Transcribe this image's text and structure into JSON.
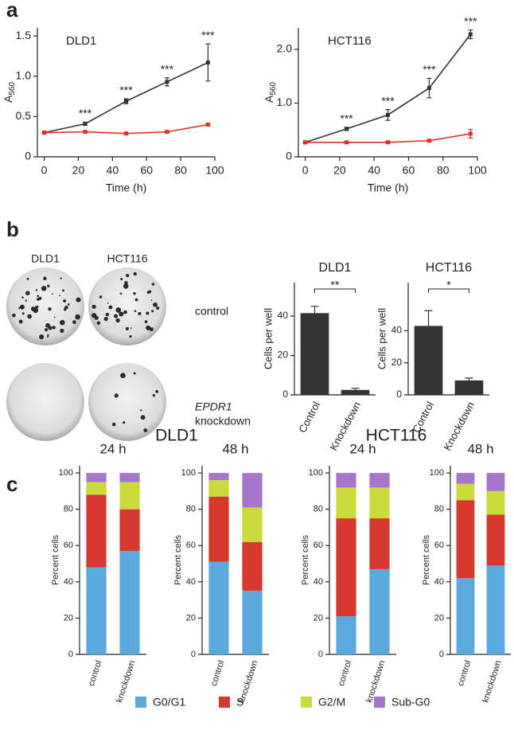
{
  "panel_labels": [
    "a",
    "b",
    "c"
  ],
  "colonies": {
    "columns": [
      "DLD1",
      "HCT116"
    ],
    "rows": [
      {
        "label": "control"
      },
      {
        "label_italic": "EPDR1",
        "label": "knockdown"
      }
    ]
  },
  "group_titles": [
    "DLD1",
    "HCT116"
  ],
  "chart_data": [
    {
      "type": "line",
      "title": "DLD1",
      "xlabel": "Time (h)",
      "ylabel": "A",
      "ylabel_sub": "560",
      "x": [
        0,
        24,
        48,
        72,
        96
      ],
      "xlim": [
        -4,
        100
      ],
      "xticks": [
        0,
        20,
        40,
        60,
        80,
        100
      ],
      "ylim": [
        0,
        1.6
      ],
      "yticks": [
        0,
        0.5,
        {
          "value": 1,
          "label": "1.0"
        },
        1.5
      ],
      "series": [
        {
          "color": "#333333",
          "values": [
            0.3,
            0.41,
            0.69,
            0.93,
            1.17
          ],
          "errors": [
            0.01,
            0.02,
            0.03,
            0.05,
            0.23
          ]
        },
        {
          "color": "#e0302a",
          "values": [
            0.3,
            0.31,
            0.29,
            0.31,
            0.4
          ],
          "errors": [
            0.01,
            0.01,
            0.01,
            0.01,
            0.015
          ]
        }
      ],
      "significance": [
        null,
        "***",
        "***",
        "***",
        "***"
      ]
    },
    {
      "type": "line",
      "title": "HCT116",
      "xlabel": "Time (h)",
      "ylabel": "A",
      "ylabel_sub": "560",
      "x": [
        0,
        24,
        48,
        72,
        96
      ],
      "xlim": [
        -4,
        100
      ],
      "xticks": [
        0,
        20,
        40,
        60,
        80,
        100
      ],
      "ylim": [
        0,
        2.4
      ],
      "yticks": [
        0,
        {
          "value": 1,
          "label": "1.0"
        },
        {
          "value": 2,
          "label": "2.0"
        }
      ],
      "series": [
        {
          "color": "#333333",
          "values": [
            0.27,
            0.52,
            0.78,
            1.28,
            2.28
          ],
          "errors": [
            0.01,
            0.03,
            0.1,
            0.18,
            0.08
          ]
        },
        {
          "color": "#e0302a",
          "values": [
            0.27,
            0.27,
            0.27,
            0.3,
            0.43
          ],
          "errors": [
            0.01,
            0.02,
            0.02,
            0.02,
            0.08
          ]
        }
      ],
      "significance": [
        null,
        "***",
        "***",
        "***",
        "***"
      ]
    },
    {
      "type": "bar",
      "title": "DLD1",
      "ylabel": "Cells per well",
      "categories": [
        "Control",
        "Knockdown"
      ],
      "values": [
        41.5,
        2.5
      ],
      "errors": [
        3.5,
        0.8
      ],
      "color": "#333333",
      "ylim": [
        0,
        57
      ],
      "yticks": [
        0,
        20,
        40
      ],
      "significance": "**"
    },
    {
      "type": "bar",
      "title": "HCT116",
      "ylabel": "Cells per well",
      "categories": [
        "Control",
        "Knockdown"
      ],
      "values": [
        43,
        9
      ],
      "errors": [
        9.5,
        1.5
      ],
      "color": "#333333",
      "ylim": [
        0,
        70
      ],
      "yticks": [
        0,
        20,
        40
      ],
      "significance": "*"
    },
    {
      "type": "stacked_bar",
      "title": "24 h",
      "ylabel": "Percent cells",
      "categories": [
        "control",
        "knockdown"
      ],
      "ylim": [
        0,
        104
      ],
      "yticks": [
        0,
        20,
        40,
        60,
        80,
        100
      ],
      "legend": "bottom",
      "series": [
        {
          "name": "G0/G1",
          "color": "#5aa9dd",
          "values": [
            48,
            57
          ]
        },
        {
          "name": "S",
          "color": "#d63a2f",
          "values": [
            40,
            23
          ]
        },
        {
          "name": "G2/M",
          "color": "#c9da3b",
          "values": [
            7,
            15
          ]
        },
        {
          "name": "Sub-G0",
          "color": "#a775c9",
          "values": [
            5,
            5
          ]
        }
      ]
    },
    {
      "type": "stacked_bar",
      "title": "48 h",
      "ylabel": "Percent cells",
      "categories": [
        "control",
        "knockdown"
      ],
      "ylim": [
        0,
        104
      ],
      "yticks": [
        0,
        20,
        40,
        60,
        80,
        100
      ],
      "series": [
        {
          "color": "#5aa9dd",
          "values": [
            51,
            35
          ]
        },
        {
          "color": "#d63a2f",
          "values": [
            36,
            27
          ]
        },
        {
          "color": "#c9da3b",
          "values": [
            9,
            19
          ]
        },
        {
          "color": "#a775c9",
          "values": [
            4,
            19
          ]
        }
      ]
    },
    {
      "type": "stacked_bar",
      "title": "24 h",
      "ylabel": "Percent cells",
      "categories": [
        "control",
        "knockdown"
      ],
      "ylim": [
        0,
        104
      ],
      "yticks": [
        0,
        20,
        40,
        60,
        80,
        100
      ],
      "series": [
        {
          "color": "#5aa9dd",
          "values": [
            21,
            47
          ]
        },
        {
          "color": "#d63a2f",
          "values": [
            54,
            28
          ]
        },
        {
          "color": "#c9da3b",
          "values": [
            17,
            17
          ]
        },
        {
          "color": "#a775c9",
          "values": [
            8,
            8
          ]
        }
      ]
    },
    {
      "type": "stacked_bar",
      "title": "48 h",
      "ylabel": "Percent cells",
      "categories": [
        "control",
        "knockdown"
      ],
      "ylim": [
        0,
        104
      ],
      "yticks": [
        0,
        20,
        40,
        60,
        80,
        100
      ],
      "series": [
        {
          "color": "#5aa9dd",
          "values": [
            42,
            49
          ]
        },
        {
          "color": "#d63a2f",
          "values": [
            43,
            28
          ]
        },
        {
          "color": "#c9da3b",
          "values": [
            9,
            13
          ]
        },
        {
          "color": "#a775c9",
          "values": [
            6,
            10
          ]
        }
      ]
    }
  ]
}
